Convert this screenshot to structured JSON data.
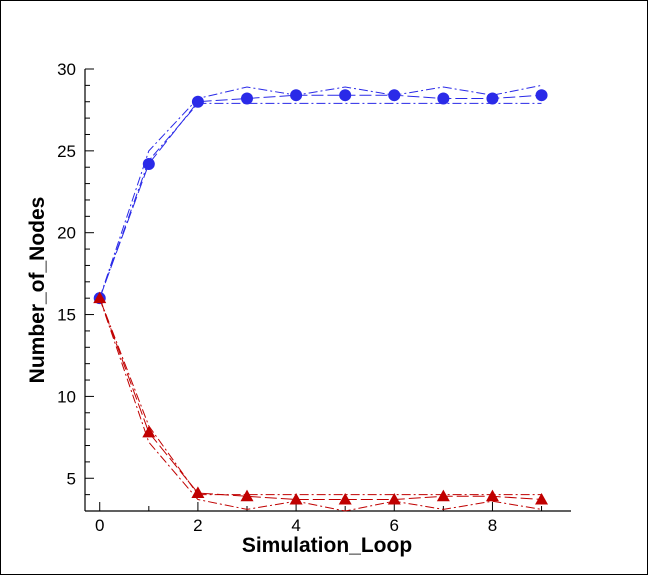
{
  "chart_data": {
    "type": "line",
    "xlabel": "Simulation_Loop",
    "ylabel": "Number_of_Nodes",
    "xlim": [
      -0.3,
      9.6
    ],
    "ylim": [
      3,
      30
    ],
    "xticks": [
      0,
      2,
      4,
      6,
      8
    ],
    "yticks": [
      5,
      10,
      15,
      20,
      25,
      30
    ],
    "grid": false,
    "legend": "none",
    "x": [
      0,
      1,
      2,
      3,
      4,
      5,
      6,
      7,
      8,
      9
    ],
    "series": [
      {
        "color": "#2a2ae8",
        "marker": "circle",
        "values": [
          16,
          24.2,
          28,
          28.2,
          28.4,
          28.4,
          28.4,
          28.2,
          28.2,
          28.4
        ],
        "upper": [
          16,
          25.0,
          28.2,
          28.9,
          28.4,
          28.9,
          28.4,
          28.9,
          28.4,
          29.0
        ],
        "lower": [
          16,
          24.4,
          27.9,
          27.9,
          27.9,
          27.9,
          27.9,
          27.9,
          27.9,
          27.9
        ]
      },
      {
        "color": "#c00000",
        "marker": "triangle",
        "values": [
          16,
          7.8,
          4.1,
          3.9,
          3.7,
          3.7,
          3.7,
          3.9,
          3.9,
          3.7
        ],
        "upper": [
          16,
          8.2,
          4.0,
          4.0,
          4.0,
          4.0,
          4.0,
          4.0,
          4.0,
          4.0
        ],
        "lower": [
          16,
          7.2,
          3.7,
          3.1,
          3.6,
          3.0,
          3.6,
          3.1,
          3.6,
          3.1
        ]
      }
    ]
  }
}
